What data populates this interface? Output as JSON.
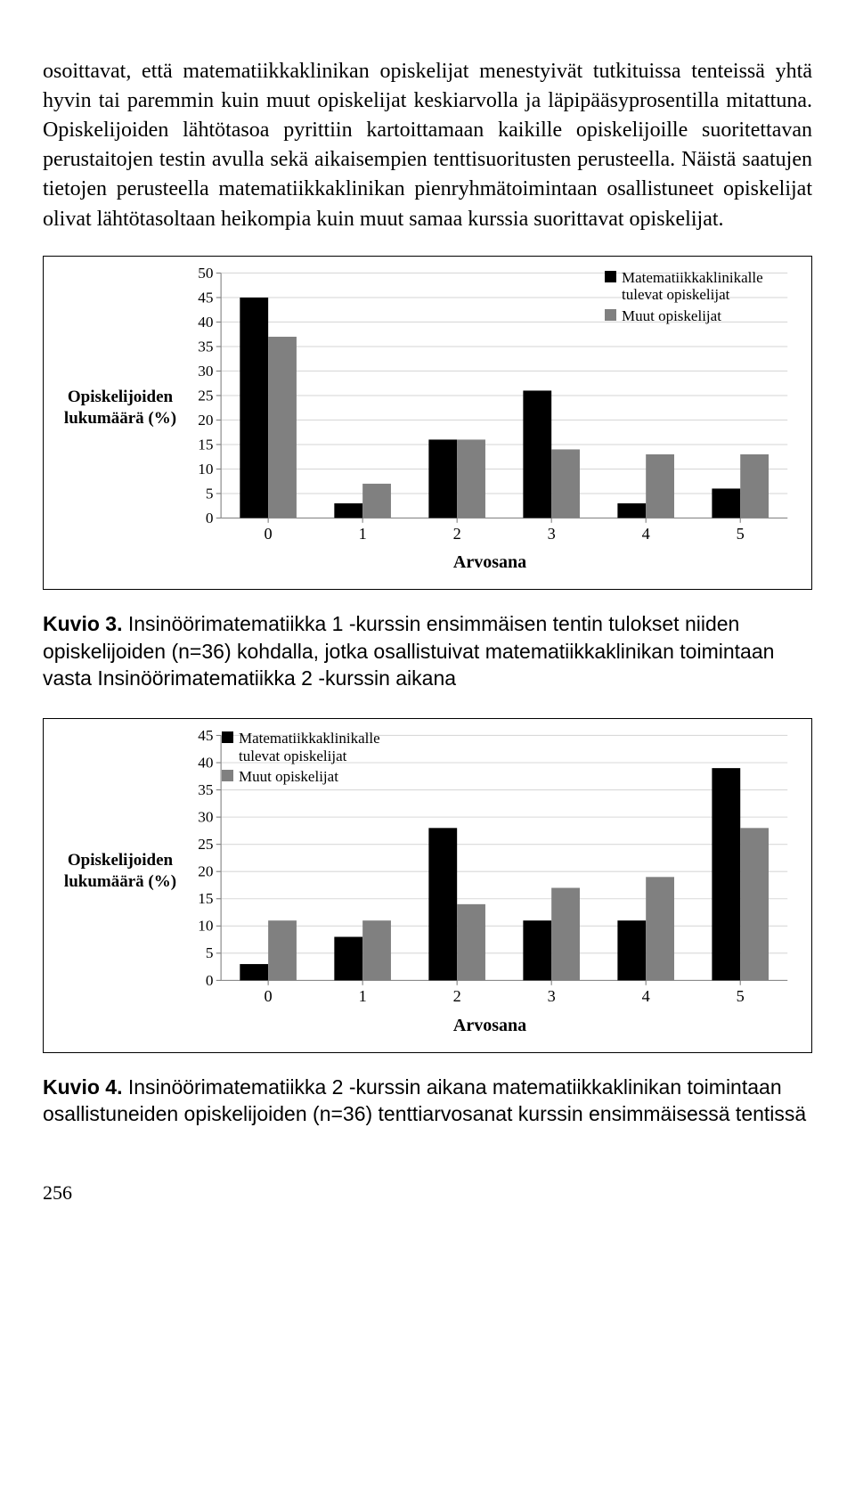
{
  "body_text": "osoittavat, että matematiikkaklinikan opiskelijat menestyivät tutkituissa tenteissä yhtä hyvin tai paremmin kuin muut opiskelijat keskiarvolla ja läpipääsyprosentilla mitattuna. Opiskelijoiden lähtötasoa pyrittiin kartoittamaan kaikille opiskelijoille suoritettavan perustaitojen testin avulla sekä aikaisempien tenttisuoritusten perusteella. Näistä saatujen tietojen perusteella matematiikkaklinikan pienryhmätoimintaan osallistuneet opiskelijat olivat lähtötasoltaan heikompia kuin muut samaa kurssia suorittavat opiskelijat.",
  "colors": {
    "series_a": "#000000",
    "series_b": "#808080",
    "axis": "#7f7f7f",
    "grid": "#d9d9d9",
    "bg": "#ffffff"
  },
  "legend_labels": {
    "a": "Matematiikkaklinikalle tulevat opiskelijat",
    "b": "Muut opiskelijat"
  },
  "chart1": {
    "type": "bar",
    "y_label": "Opiskelijoiden lukumäärä (%)",
    "x_label": "Arvosana",
    "categories": [
      "0",
      "1",
      "2",
      "3",
      "4",
      "5"
    ],
    "series_a": [
      45,
      3,
      16,
      26,
      3,
      6
    ],
    "series_b": [
      37,
      7,
      16,
      14,
      13,
      13
    ],
    "ymax": 50,
    "ystep": 5,
    "legend_pos": "top-right"
  },
  "caption1_label": "Kuvio 3.",
  "caption1_text": " Insinöörimatematiikka 1 -kurssin ensimmäisen tentin tulokset niiden opiskelijoiden (n=36) kohdalla, jotka osallistuivat matematiikkaklinikan toimintaan vasta Insinöörimatematiikka 2 -kurssin aikana",
  "chart2": {
    "type": "bar",
    "y_label": "Opiskelijoiden lukumäärä (%)",
    "x_label": "Arvosana",
    "categories": [
      "0",
      "1",
      "2",
      "3",
      "4",
      "5"
    ],
    "series_a": [
      3,
      8,
      28,
      11,
      11,
      39
    ],
    "series_b": [
      11,
      11,
      14,
      17,
      19,
      28
    ],
    "ymax": 45,
    "ystep": 5,
    "legend_pos": "top-left"
  },
  "caption2_label": "Kuvio 4.",
  "caption2_text": " Insinöörimatematiikka 2 -kurssin aikana matematiikkaklinikan toimintaan osallistuneiden opiskelijoiden (n=36) tenttiarvosanat kurssin ensimmäisessä tentissä",
  "page_number": "256"
}
